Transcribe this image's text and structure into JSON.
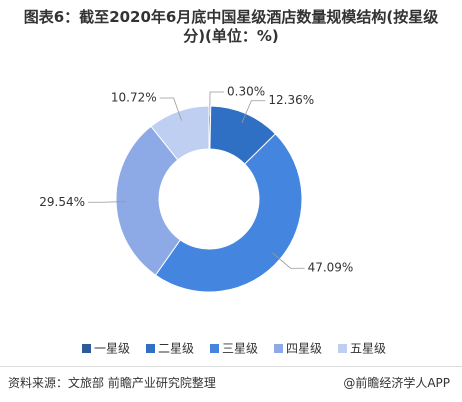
{
  "chart_data": {
    "type": "donut",
    "title": "图表6：截至2020年6月底中国星级酒店数量规模结构(按星级分)(单位：%)",
    "categories": [
      "一星级",
      "二星级",
      "三星级",
      "四星级",
      "五星级"
    ],
    "values": [
      0.3,
      12.36,
      47.09,
      29.54,
      10.72
    ],
    "value_labels": [
      "0.30%",
      "12.36%",
      "47.09%",
      "29.54%",
      "10.72%"
    ],
    "colors": [
      "#2d5b9a",
      "#2f6fc4",
      "#4485e0",
      "#8eaae6",
      "#bfcff1"
    ],
    "source": "资料来源：文旅部 前瞻产业研究院整理",
    "brand": "@前瞻经济学人APP"
  }
}
